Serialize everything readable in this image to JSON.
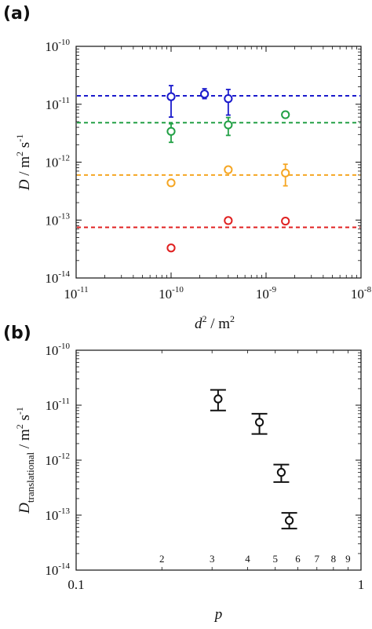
{
  "panels": {
    "a": {
      "label": "(a)"
    },
    "b": {
      "label": "(b)"
    }
  },
  "chart_data": [
    {
      "type": "scatter",
      "panel": "(a)",
      "xscale": "log",
      "yscale": "log",
      "xlim": [
        1e-11,
        1e-08
      ],
      "ylim": [
        1e-14,
        1e-10
      ],
      "xlabel": {
        "symbol": "d",
        "exponent": "2",
        "unit": " / m",
        "unit_exp": "2"
      },
      "ylabel": {
        "symbol": "D",
        "unit": " / m",
        "exp1": "2",
        "mid": " s",
        "exp2": "-1"
      },
      "xticks": [
        {
          "value": 1e-11,
          "base": "10",
          "exp": "-11"
        },
        {
          "value": 1e-10,
          "base": "10",
          "exp": "-10"
        },
        {
          "value": 1e-09,
          "base": "10",
          "exp": "-9"
        },
        {
          "value": 1e-08,
          "base": "10",
          "exp": "-8"
        }
      ],
      "yticks": [
        {
          "value": 1e-14,
          "base": "10",
          "exp": "-14"
        },
        {
          "value": 1e-13,
          "base": "10",
          "exp": "-13"
        },
        {
          "value": 1e-12,
          "base": "10",
          "exp": "-12"
        },
        {
          "value": 1e-11,
          "base": "10",
          "exp": "-11"
        },
        {
          "value": 1e-10,
          "base": "10",
          "exp": "-10"
        }
      ],
      "grid": false,
      "series": [
        {
          "color": "#1a1acc",
          "reference_line": 1.4e-11,
          "points": [
            {
              "x": 1e-10,
              "y": 1.35e-11,
              "ylo": 6e-12,
              "yhi": 2.1e-11
            },
            {
              "x": 2.25e-10,
              "y": 1.5e-11,
              "ylo": 1.25e-11,
              "yhi": 1.85e-11
            },
            {
              "x": 4e-10,
              "y": 1.25e-11,
              "ylo": 6.5e-12,
              "yhi": 1.8e-11
            }
          ]
        },
        {
          "color": "#22a045",
          "reference_line": 4.8e-12,
          "points": [
            {
              "x": 1e-10,
              "y": 3.4e-12,
              "ylo": 2.2e-12,
              "yhi": 4.6e-12
            },
            {
              "x": 4e-10,
              "y": 4.4e-12,
              "ylo": 2.9e-12,
              "yhi": 5.9e-12
            },
            {
              "x": 1.6e-09,
              "y": 6.6e-12
            }
          ]
        },
        {
          "color": "#f5a623",
          "reference_line": 6e-13,
          "points": [
            {
              "x": 1e-10,
              "y": 4.4e-13
            },
            {
              "x": 4e-10,
              "y": 7.4e-13
            },
            {
              "x": 1.6e-09,
              "y": 6.5e-13,
              "ylo": 3.9e-13,
              "yhi": 9.2e-13
            }
          ]
        },
        {
          "color": "#e02020",
          "reference_line": 7.5e-14,
          "points": [
            {
              "x": 1e-10,
              "y": 3.3e-14
            },
            {
              "x": 4e-10,
              "y": 9.8e-14
            },
            {
              "x": 1.6e-09,
              "y": 9.6e-14
            }
          ]
        }
      ]
    },
    {
      "type": "scatter",
      "panel": "(b)",
      "xscale": "log",
      "yscale": "log",
      "xlim": [
        0.1,
        1
      ],
      "ylim": [
        1e-14,
        1e-10
      ],
      "xlabel": {
        "symbol": "p"
      },
      "ylabel": {
        "symbol": "D",
        "subscript": "translational",
        "unit": " / m",
        "exp1": "2",
        "mid": " s",
        "exp2": "-1"
      },
      "xticks_major": [
        {
          "value": 0.1,
          "label": "0.1"
        },
        {
          "value": 1,
          "label": "1"
        }
      ],
      "xticks_minor": [
        {
          "value": 0.2,
          "label": "2"
        },
        {
          "value": 0.3,
          "label": "3"
        },
        {
          "value": 0.4,
          "label": "4"
        },
        {
          "value": 0.5,
          "label": "5"
        },
        {
          "value": 0.6,
          "label": "6"
        },
        {
          "value": 0.7,
          "label": "7"
        },
        {
          "value": 0.8,
          "label": "8"
        },
        {
          "value": 0.9,
          "label": "9"
        }
      ],
      "yticks": [
        {
          "value": 1e-14,
          "base": "10",
          "exp": "-14"
        },
        {
          "value": 1e-13,
          "base": "10",
          "exp": "-13"
        },
        {
          "value": 1e-12,
          "base": "10",
          "exp": "-12"
        },
        {
          "value": 1e-11,
          "base": "10",
          "exp": "-11"
        },
        {
          "value": 1e-10,
          "base": "10",
          "exp": "-10"
        }
      ],
      "grid": false,
      "series": [
        {
          "color": "#111111",
          "points": [
            {
              "x": 0.315,
              "y": 1.3e-11,
              "ylo": 8e-12,
              "yhi": 1.9e-11
            },
            {
              "x": 0.44,
              "y": 4.9e-12,
              "ylo": 3e-12,
              "yhi": 7e-12
            },
            {
              "x": 0.525,
              "y": 6e-13,
              "ylo": 4e-13,
              "yhi": 8.3e-13
            },
            {
              "x": 0.56,
              "y": 8e-14,
              "ylo": 5.7e-14,
              "yhi": 1.1e-13
            }
          ]
        }
      ]
    }
  ]
}
